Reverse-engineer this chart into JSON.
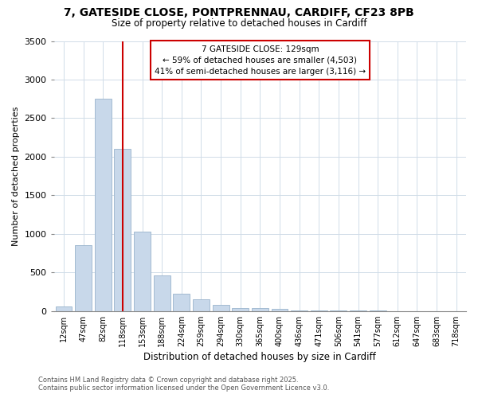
{
  "title_line1": "7, GATESIDE CLOSE, PONTPRENNAU, CARDIFF, CF23 8PB",
  "title_line2": "Size of property relative to detached houses in Cardiff",
  "xlabel": "Distribution of detached houses by size in Cardiff",
  "ylabel": "Number of detached properties",
  "categories": [
    "12sqm",
    "47sqm",
    "82sqm",
    "118sqm",
    "153sqm",
    "188sqm",
    "224sqm",
    "259sqm",
    "294sqm",
    "330sqm",
    "365sqm",
    "400sqm",
    "436sqm",
    "471sqm",
    "506sqm",
    "541sqm",
    "577sqm",
    "612sqm",
    "647sqm",
    "683sqm",
    "718sqm"
  ],
  "values": [
    60,
    850,
    2750,
    2100,
    1030,
    460,
    220,
    155,
    80,
    40,
    35,
    25,
    10,
    8,
    5,
    4,
    3,
    2,
    2,
    1,
    1
  ],
  "bar_color": "#c8d8ea",
  "bar_edge_color": "#9ab4cc",
  "grid_color": "#d0dce8",
  "vline_color": "#cc0000",
  "vline_x": 3.5,
  "annotation_text": "7 GATESIDE CLOSE: 129sqm\n← 59% of detached houses are smaller (4,503)\n41% of semi-detached houses are larger (3,116) →",
  "annotation_box_facecolor": "#ffffff",
  "annotation_box_edgecolor": "#cc0000",
  "ylim": [
    0,
    3500
  ],
  "yticks": [
    0,
    500,
    1000,
    1500,
    2000,
    2500,
    3000,
    3500
  ],
  "footer_line1": "Contains HM Land Registry data © Crown copyright and database right 2025.",
  "footer_line2": "Contains public sector information licensed under the Open Government Licence v3.0.",
  "bg_color": "#ffffff",
  "plot_bg_color": "#ffffff"
}
